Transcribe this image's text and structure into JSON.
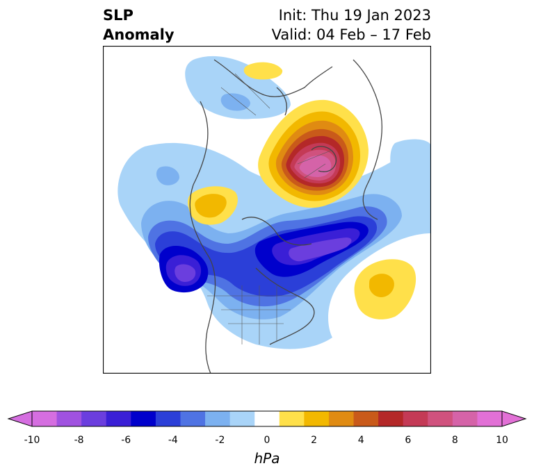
{
  "title": {
    "left_line1": "SLP",
    "left_line2": "Anomaly",
    "right_line1": "Init: Thu 19 Jan 2023",
    "right_line2": "Valid: 04 Feb – 17 Feb"
  },
  "colorbar": {
    "units": "hPa",
    "tick_labels": [
      "-10",
      "-8",
      "-6",
      "-4",
      "-2",
      "0",
      "2",
      "4",
      "6",
      "8",
      "10"
    ],
    "colors": [
      "#d56ee0",
      "#a052e0",
      "#6b3ede",
      "#3a1fd6",
      "#0000cc",
      "#2b3fd8",
      "#4f73e3",
      "#7cb1f0",
      "#a9d4f8",
      "#ffffff",
      "#ffe04a",
      "#f2b800",
      "#e08b12",
      "#c95a1a",
      "#b42828",
      "#c43a56",
      "#d0527e",
      "#d563a8",
      "#e270d6"
    ],
    "min_color": "#d56ee0",
    "max_color": "#e270d6"
  },
  "map": {
    "projection": "north-polar-stereographic",
    "region": "Northern Hemisphere (Atlantic/Europe centered)",
    "field": "SLP anomaly (hPa)"
  }
}
